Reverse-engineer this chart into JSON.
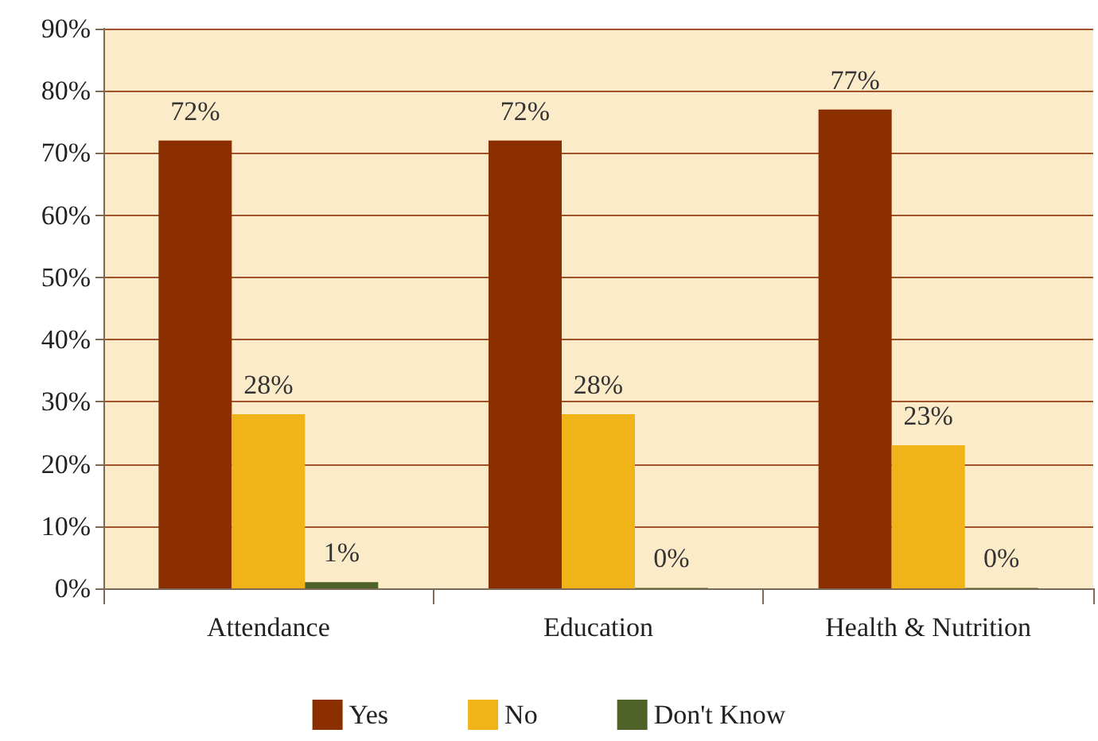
{
  "chart_data": {
    "type": "bar",
    "categories": [
      "Attendance",
      "Education",
      "Health & Nutrition"
    ],
    "series": [
      {
        "name": "Yes",
        "color": "#8b2e00",
        "values": [
          72,
          72,
          77
        ],
        "value_labels": [
          "72%",
          "72%",
          "77%"
        ]
      },
      {
        "name": "No",
        "color": "#f0b418",
        "values": [
          28,
          28,
          23
        ],
        "value_labels": [
          "28%",
          "28%",
          "23%"
        ]
      },
      {
        "name": "Don't Know",
        "color": "#4f6228",
        "values": [
          1,
          0,
          0
        ],
        "value_labels": [
          "1%",
          "0%",
          "0%"
        ]
      }
    ],
    "ylim": [
      0,
      90
    ],
    "yticks": [
      {
        "value": 0,
        "label": "0%"
      },
      {
        "value": 10,
        "label": "10%"
      },
      {
        "value": 20,
        "label": "20%"
      },
      {
        "value": 30,
        "label": "30%"
      },
      {
        "value": 40,
        "label": "40%"
      },
      {
        "value": 50,
        "label": "50%"
      },
      {
        "value": 60,
        "label": "60%"
      },
      {
        "value": 70,
        "label": "70%"
      },
      {
        "value": 80,
        "label": "80%"
      },
      {
        "value": 90,
        "label": "90%"
      }
    ],
    "grid": "y",
    "legend": "bottom"
  }
}
